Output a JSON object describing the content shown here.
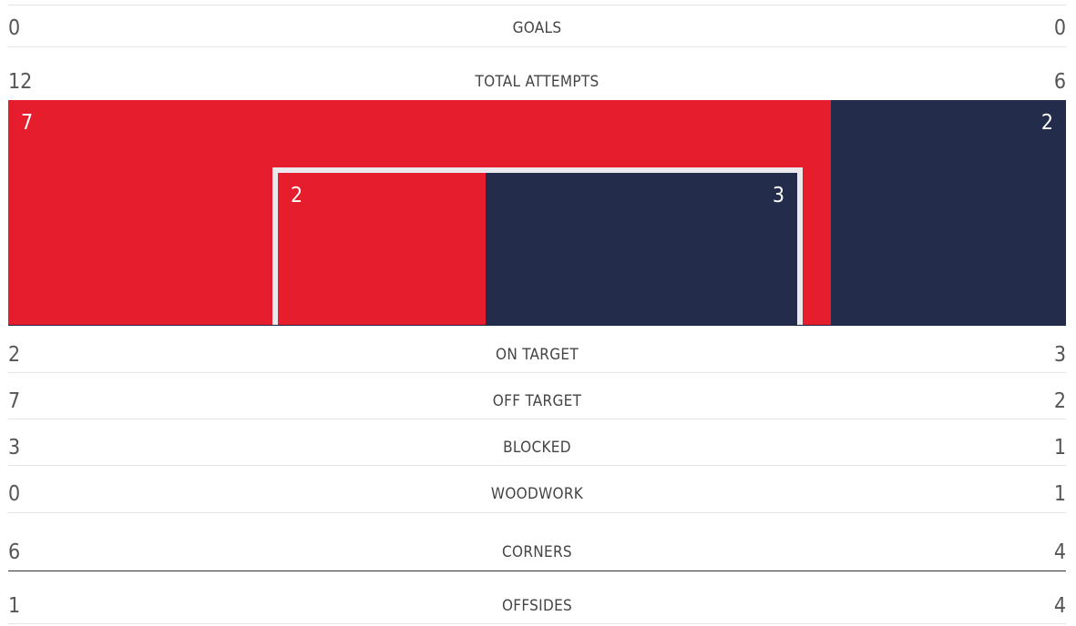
{
  "stats": [
    {
      "key": "goals",
      "label": "GOALS",
      "home": "0",
      "away": "0"
    },
    {
      "key": "total_attempts",
      "label": "TOTAL ATTEMPTS",
      "home": "12",
      "away": "6"
    },
    {
      "key": "on_target",
      "label": "ON TARGET",
      "home": "2",
      "away": "3"
    },
    {
      "key": "off_target",
      "label": "OFF TARGET",
      "home": "7",
      "away": "2"
    },
    {
      "key": "blocked",
      "label": "BLOCKED",
      "home": "3",
      "away": "1"
    },
    {
      "key": "woodwork",
      "label": "WOODWORK",
      "home": "0",
      "away": "1"
    },
    {
      "key": "corners",
      "label": "CORNERS",
      "home": "6",
      "away": "4"
    },
    {
      "key": "offsides",
      "label": "OFFSIDES",
      "home": "1",
      "away": "4"
    }
  ],
  "attempts_graphic": {
    "off_target_home": "7",
    "off_target_away": "2",
    "on_target_home": "2",
    "on_target_away": "3"
  },
  "colors": {
    "home": "#e51d2c",
    "away": "#232d4b",
    "goal_frame": "#e9e9ee"
  }
}
